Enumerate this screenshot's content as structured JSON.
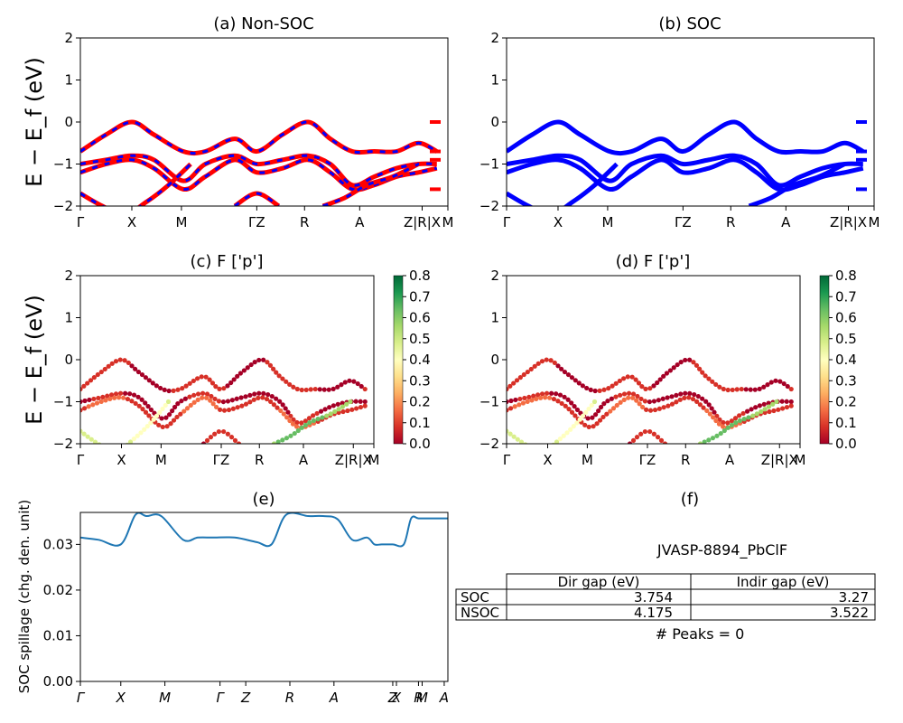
{
  "chart_data": [
    {
      "id": "a",
      "type": "line",
      "title": "(a) Non-SOC",
      "ylabel": "E − E_f (eV)",
      "ylim": [
        -2,
        2
      ],
      "yticks": [
        "2",
        "1",
        "0",
        "−1",
        "−2"
      ],
      "xticks": [
        "Γ",
        "X",
        "M",
        "ΓZ",
        "R",
        "A",
        "Z|R|X",
        "M"
      ],
      "series": [
        {
          "role": "nonsoc",
          "color": "#ff0000",
          "x": [
            0,
            0.07,
            0.14,
            0.2,
            0.28,
            0.34,
            0.42,
            0.48,
            0.55,
            0.62,
            0.68,
            0.74,
            0.8,
            0.86,
            0.92,
            0.97
          ],
          "y": [
            -0.7,
            -0.3,
            0,
            -0.3,
            -0.7,
            -0.7,
            -0.4,
            -0.7,
            -0.3,
            0,
            -0.4,
            -0.7,
            -0.7,
            -0.7,
            -0.5,
            -0.7
          ]
        },
        {
          "role": "nonsoc",
          "color": "#ff0000",
          "x": [
            0,
            0.07,
            0.14,
            0.2,
            0.28,
            0.34,
            0.42,
            0.48,
            0.55,
            0.62,
            0.68,
            0.74,
            0.8,
            0.86,
            0.92,
            0.97
          ],
          "y": [
            -1,
            -0.9,
            -0.8,
            -0.9,
            -1.4,
            -1.0,
            -0.8,
            -1.0,
            -0.9,
            -0.8,
            -1.0,
            -1.5,
            -1.3,
            -1.1,
            -1.0,
            -1.0
          ]
        },
        {
          "role": "nonsoc",
          "color": "#ff0000",
          "x": [
            0,
            0.07,
            0.14,
            0.2,
            0.28,
            0.34,
            0.42,
            0.48,
            0.55,
            0.62,
            0.68,
            0.74,
            0.8,
            0.86,
            0.92,
            0.97
          ],
          "y": [
            -1.2,
            -1.0,
            -0.9,
            -1.1,
            -1.6,
            -1.3,
            -0.9,
            -1.2,
            -1.1,
            -0.9,
            -1.2,
            -1.6,
            -1.5,
            -1.3,
            -1.2,
            -1.1
          ]
        },
        {
          "role": "nonsoc",
          "color": "#ff0000",
          "x": [
            0,
            0.06,
            0.12,
            0.18,
            0.24,
            0.3
          ],
          "y": [
            -1.7,
            -2.0,
            -2.2,
            -1.9,
            -1.5,
            -1.0
          ]
        },
        {
          "role": "nonsoc",
          "color": "#ff0000",
          "x": [
            0.42,
            0.48,
            0.54
          ],
          "y": [
            -2.0,
            -1.7,
            -2.0
          ]
        },
        {
          "role": "nonsoc",
          "color": "#ff0000",
          "x": [
            0.66,
            0.72,
            0.78,
            0.85,
            0.92
          ],
          "y": [
            -2.0,
            -1.8,
            -1.5,
            -1.3,
            -1.0
          ]
        }
      ]
    },
    {
      "id": "b",
      "type": "line",
      "title": "(b) SOC",
      "ylim": [
        -2,
        2
      ],
      "yticks": [
        "2",
        "1",
        "0",
        "−1",
        "−2"
      ],
      "xticks": [
        "Γ",
        "X",
        "M",
        "ΓZ",
        "R",
        "A",
        "Z|R|X",
        "M"
      ],
      "series": [
        {
          "role": "soc",
          "color": "#0000ff",
          "x": [
            0,
            0.07,
            0.14,
            0.2,
            0.28,
            0.34,
            0.42,
            0.48,
            0.55,
            0.62,
            0.68,
            0.74,
            0.8,
            0.86,
            0.92,
            0.97
          ],
          "y": [
            -0.7,
            -0.3,
            0,
            -0.3,
            -0.7,
            -0.7,
            -0.4,
            -0.7,
            -0.3,
            0,
            -0.4,
            -0.7,
            -0.7,
            -0.7,
            -0.5,
            -0.7
          ]
        },
        {
          "role": "soc",
          "color": "#0000ff",
          "x": [
            0,
            0.07,
            0.14,
            0.2,
            0.28,
            0.34,
            0.42,
            0.48,
            0.55,
            0.62,
            0.68,
            0.74,
            0.8,
            0.86,
            0.92,
            0.97
          ],
          "y": [
            -1,
            -0.9,
            -0.8,
            -0.9,
            -1.4,
            -1.0,
            -0.8,
            -1.0,
            -0.9,
            -0.8,
            -1.0,
            -1.5,
            -1.3,
            -1.1,
            -1.0,
            -1.0
          ]
        },
        {
          "role": "soc",
          "color": "#0000ff",
          "x": [
            0,
            0.07,
            0.14,
            0.2,
            0.28,
            0.34,
            0.42,
            0.48,
            0.55,
            0.62,
            0.68,
            0.74,
            0.8,
            0.86,
            0.92,
            0.97
          ],
          "y": [
            -1.2,
            -1.0,
            -0.9,
            -1.1,
            -1.6,
            -1.3,
            -0.9,
            -1.2,
            -1.1,
            -0.9,
            -1.2,
            -1.6,
            -1.5,
            -1.3,
            -1.2,
            -1.1
          ]
        },
        {
          "role": "soc",
          "color": "#0000ff",
          "x": [
            0,
            0.06,
            0.12,
            0.18,
            0.24,
            0.3
          ],
          "y": [
            -1.7,
            -2.0,
            -2.2,
            -1.9,
            -1.5,
            -1.0
          ]
        },
        {
          "role": "soc",
          "color": "#0000ff",
          "x": [
            0.66,
            0.72,
            0.78,
            0.85,
            0.92
          ],
          "y": [
            -2.0,
            -1.8,
            -1.5,
            -1.3,
            -1.0
          ]
        }
      ]
    },
    {
      "id": "c",
      "type": "scatter",
      "title": "(c)  F ['p']",
      "ylabel": "E − E_f (eV)",
      "ylim": [
        -2,
        2
      ],
      "yticks": [
        "2",
        "1",
        "0",
        "−1",
        "−2"
      ],
      "xticks": [
        "Γ",
        "X",
        "M",
        "ΓZ",
        "R",
        "A",
        "Z|R|X",
        "M"
      ],
      "colorbar": {
        "ticks": [
          "0.8",
          "0.7",
          "0.6",
          "0.5",
          "0.4",
          "0.3",
          "0.2",
          "0.1",
          "0.0"
        ],
        "colors": [
          "#a50026",
          "#d73027",
          "#f46d43",
          "#fdae61",
          "#fee08b",
          "#ffffbf",
          "#d9ef8b",
          "#a6d96a",
          "#66bd63",
          "#1a9850",
          "#006837"
        ]
      }
    },
    {
      "id": "d",
      "type": "scatter",
      "title": "(d) F ['p']",
      "ylim": [
        -2,
        2
      ],
      "yticks": [
        "2",
        "1",
        "0",
        "−1",
        "−2"
      ],
      "xticks": [
        "Γ",
        "X",
        "M",
        "ΓZ",
        "R",
        "A",
        "Z|R|X",
        "M"
      ],
      "colorbar": {
        "ticks": [
          "0.8",
          "0.7",
          "0.6",
          "0.5",
          "0.4",
          "0.3",
          "0.2",
          "0.1",
          "0.0"
        ]
      }
    },
    {
      "id": "e",
      "type": "line",
      "title": "(e)",
      "ylabel": "SOC spillage (chg. den. unit)",
      "ylim": [
        0,
        0.037
      ],
      "yticks": [
        "0.03",
        "0.02",
        "0.01",
        "0.00"
      ],
      "xticks": [
        "Γ",
        "X",
        "M",
        "Γ",
        "Z",
        "R",
        "A",
        "Z",
        "X",
        "R",
        "M",
        "A"
      ],
      "series": [
        {
          "color": "#1f77b4",
          "x": [
            0,
            0.05,
            0.11,
            0.15,
            0.18,
            0.22,
            0.28,
            0.32,
            0.36,
            0.42,
            0.48,
            0.52,
            0.56,
            0.62,
            0.66,
            0.7,
            0.74,
            0.78,
            0.8,
            0.82,
            0.85,
            0.88,
            0.9,
            0.92,
            0.95,
            1.0
          ],
          "y": [
            0.0315,
            0.031,
            0.03,
            0.0365,
            0.0362,
            0.0362,
            0.031,
            0.0315,
            0.0315,
            0.0315,
            0.0305,
            0.03,
            0.0365,
            0.0362,
            0.0362,
            0.0355,
            0.031,
            0.0315,
            0.03,
            0.03,
            0.03,
            0.03,
            0.0357,
            0.0357,
            0.0357,
            0.0357
          ]
        }
      ]
    }
  ],
  "panel_f": {
    "title": "(f)",
    "name": "JVASP-8894_PbClF",
    "table": {
      "headers": [
        "Dir gap (eV)",
        "Indir gap (eV)"
      ],
      "rows": [
        {
          "label": "SOC",
          "dir": "3.754",
          "indir": "3.27"
        },
        {
          "label": "NSOC",
          "dir": "4.175",
          "indir": "3.522"
        }
      ]
    },
    "peaks": "# Peaks = 0"
  }
}
